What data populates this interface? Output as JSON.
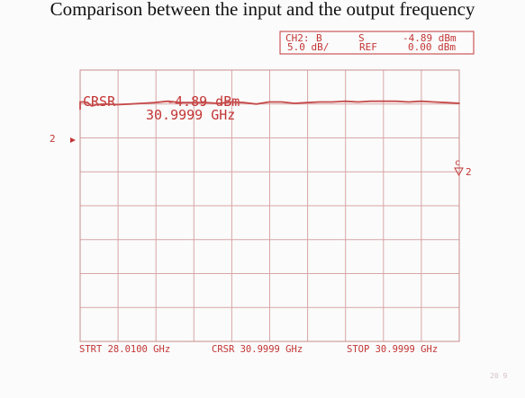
{
  "header": {
    "title": "Comparison between the input and the output frequency"
  },
  "chart_data": {
    "type": "line",
    "title": "",
    "xlabel": "",
    "ylabel": "",
    "status": {
      "line1_left": "CH2:",
      "line1_mid": "B",
      "line1_code": "S",
      "line1_value": "-4.89 dBm",
      "line2_scale": "5.0 dB/",
      "line2_ref": "REF",
      "line2_value": "0.00 dBm"
    },
    "cursor": {
      "label": "CRSR",
      "value": "-4.89 dBm",
      "frequency": "30.9999 GHz"
    },
    "channel_marker": "2",
    "cursor_marker": "c",
    "footer": {
      "start": "STRT 28.0100 GHz",
      "cursor": "CRSR 30.9999 GHz",
      "stop": "STOP 30.9999 GHz"
    },
    "page_mark": "20 9",
    "x": [
      28.01,
      28.04,
      28.07,
      28.1,
      28.14,
      28.2,
      28.3,
      28.4,
      28.5,
      28.6,
      28.7,
      28.8,
      28.9,
      29.0,
      29.1,
      29.2,
      29.3,
      29.4,
      29.5,
      29.6,
      29.7,
      29.8,
      29.9,
      30.0,
      30.1,
      30.2,
      30.3,
      30.4,
      30.5,
      30.6,
      30.7,
      30.8,
      30.9,
      30.9999
    ],
    "values": [
      -4.7,
      -4.7,
      -4.8,
      -5.3,
      -5.1,
      -5.0,
      -5.1,
      -5.0,
      -4.9,
      -4.8,
      -4.6,
      -4.8,
      -4.8,
      -4.8,
      -4.9,
      -4.7,
      -4.8,
      -5.0,
      -4.7,
      -4.7,
      -4.9,
      -4.8,
      -4.7,
      -4.7,
      -4.6,
      -4.7,
      -4.6,
      -4.6,
      -4.6,
      -4.7,
      -4.6,
      -4.7,
      -4.8,
      -4.9
    ],
    "xlim": [
      28.01,
      30.9999
    ],
    "ylim": [
      -40,
      0
    ],
    "grid": true,
    "colors": {
      "grid": "#d8a6a6",
      "frame": "#c98e8e",
      "trace": "#c64b4b",
      "text": "#c33535",
      "header": "#111111"
    }
  }
}
